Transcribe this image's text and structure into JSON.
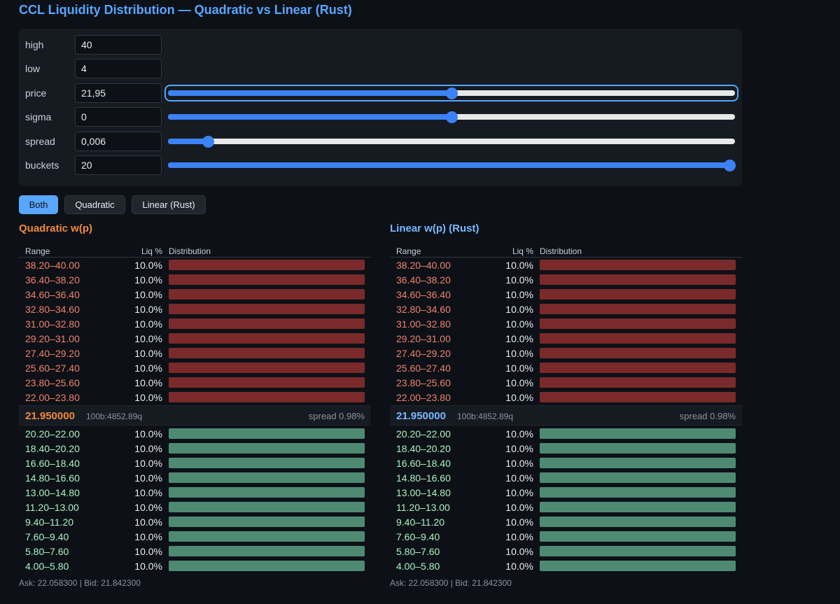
{
  "title": "CCL Liquidity Distribution — Quadratic vs Linear (Rust)",
  "controls": {
    "high": {
      "label": "high",
      "value": "40"
    },
    "low": {
      "label": "low",
      "value": "4"
    },
    "price": {
      "label": "price",
      "value": "21,95",
      "slider_fraction": 0.5
    },
    "sigma": {
      "label": "sigma",
      "value": "0",
      "slider_fraction": 0.5
    },
    "spread": {
      "label": "spread",
      "value": "0,006",
      "slider_fraction": 0.07
    },
    "buckets": {
      "label": "buckets",
      "value": "20",
      "slider_fraction": 1.0
    }
  },
  "mode_buttons": {
    "both": "Both",
    "quadratic": "Quadratic",
    "linear": "Linear (Rust)"
  },
  "colors": {
    "quadratic": "#f0883e",
    "linear": "#79b8ff",
    "accent": "#58a6ff",
    "ask_bar": "#7a2a2a",
    "bid_bar": "#4e8a72"
  },
  "table_headers": {
    "range": "Range",
    "liq": "Liq %",
    "distribution": "Distribution"
  },
  "panels": [
    {
      "title": "Quadratic w(p)",
      "mid_price": "21.950000",
      "mid_sub": "100b:4852.89q",
      "spread_text": "spread 0.98%",
      "footer": "Ask: 22.058300 | Bid: 21.842300",
      "asks": [
        {
          "range": "38.20–40.00",
          "pct": "10.0%",
          "fraction": 1.0
        },
        {
          "range": "36.40–38.20",
          "pct": "10.0%",
          "fraction": 1.0
        },
        {
          "range": "34.60–36.40",
          "pct": "10.0%",
          "fraction": 1.0
        },
        {
          "range": "32.80–34.60",
          "pct": "10.0%",
          "fraction": 1.0
        },
        {
          "range": "31.00–32.80",
          "pct": "10.0%",
          "fraction": 1.0
        },
        {
          "range": "29.20–31.00",
          "pct": "10.0%",
          "fraction": 1.0
        },
        {
          "range": "27.40–29.20",
          "pct": "10.0%",
          "fraction": 1.0
        },
        {
          "range": "25.60–27.40",
          "pct": "10.0%",
          "fraction": 1.0
        },
        {
          "range": "23.80–25.60",
          "pct": "10.0%",
          "fraction": 1.0
        },
        {
          "range": "22.00–23.80",
          "pct": "10.0%",
          "fraction": 1.0
        }
      ],
      "bids": [
        {
          "range": "20.20–22.00",
          "pct": "10.0%",
          "fraction": 1.0
        },
        {
          "range": "18.40–20.20",
          "pct": "10.0%",
          "fraction": 1.0
        },
        {
          "range": "16.60–18.40",
          "pct": "10.0%",
          "fraction": 1.0
        },
        {
          "range": "14.80–16.60",
          "pct": "10.0%",
          "fraction": 1.0
        },
        {
          "range": "13.00–14.80",
          "pct": "10.0%",
          "fraction": 1.0
        },
        {
          "range": "11.20–13.00",
          "pct": "10.0%",
          "fraction": 1.0
        },
        {
          "range": "9.40–11.20",
          "pct": "10.0%",
          "fraction": 1.0
        },
        {
          "range": "7.60–9.40",
          "pct": "10.0%",
          "fraction": 1.0
        },
        {
          "range": "5.80–7.60",
          "pct": "10.0%",
          "fraction": 1.0
        },
        {
          "range": "4.00–5.80",
          "pct": "10.0%",
          "fraction": 1.0
        }
      ]
    },
    {
      "title": "Linear w(p) (Rust)",
      "mid_price": "21.950000",
      "mid_sub": "100b:4852.89q",
      "spread_text": "spread 0.98%",
      "footer": "Ask: 22.058300 | Bid: 21.842300",
      "asks": [
        {
          "range": "38.20–40.00",
          "pct": "10.0%",
          "fraction": 1.0
        },
        {
          "range": "36.40–38.20",
          "pct": "10.0%",
          "fraction": 1.0
        },
        {
          "range": "34.60–36.40",
          "pct": "10.0%",
          "fraction": 1.0
        },
        {
          "range": "32.80–34.60",
          "pct": "10.0%",
          "fraction": 1.0
        },
        {
          "range": "31.00–32.80",
          "pct": "10.0%",
          "fraction": 1.0
        },
        {
          "range": "29.20–31.00",
          "pct": "10.0%",
          "fraction": 1.0
        },
        {
          "range": "27.40–29.20",
          "pct": "10.0%",
          "fraction": 1.0
        },
        {
          "range": "25.60–27.40",
          "pct": "10.0%",
          "fraction": 1.0
        },
        {
          "range": "23.80–25.60",
          "pct": "10.0%",
          "fraction": 1.0
        },
        {
          "range": "22.00–23.80",
          "pct": "10.0%",
          "fraction": 1.0
        }
      ],
      "bids": [
        {
          "range": "20.20–22.00",
          "pct": "10.0%",
          "fraction": 1.0
        },
        {
          "range": "18.40–20.20",
          "pct": "10.0%",
          "fraction": 1.0
        },
        {
          "range": "16.60–18.40",
          "pct": "10.0%",
          "fraction": 1.0
        },
        {
          "range": "14.80–16.60",
          "pct": "10.0%",
          "fraction": 1.0
        },
        {
          "range": "13.00–14.80",
          "pct": "10.0%",
          "fraction": 1.0
        },
        {
          "range": "11.20–13.00",
          "pct": "10.0%",
          "fraction": 1.0
        },
        {
          "range": "9.40–11.20",
          "pct": "10.0%",
          "fraction": 1.0
        },
        {
          "range": "7.60–9.40",
          "pct": "10.0%",
          "fraction": 1.0
        },
        {
          "range": "5.80–7.60",
          "pct": "10.0%",
          "fraction": 1.0
        },
        {
          "range": "4.00–5.80",
          "pct": "10.0%",
          "fraction": 1.0
        }
      ]
    }
  ]
}
